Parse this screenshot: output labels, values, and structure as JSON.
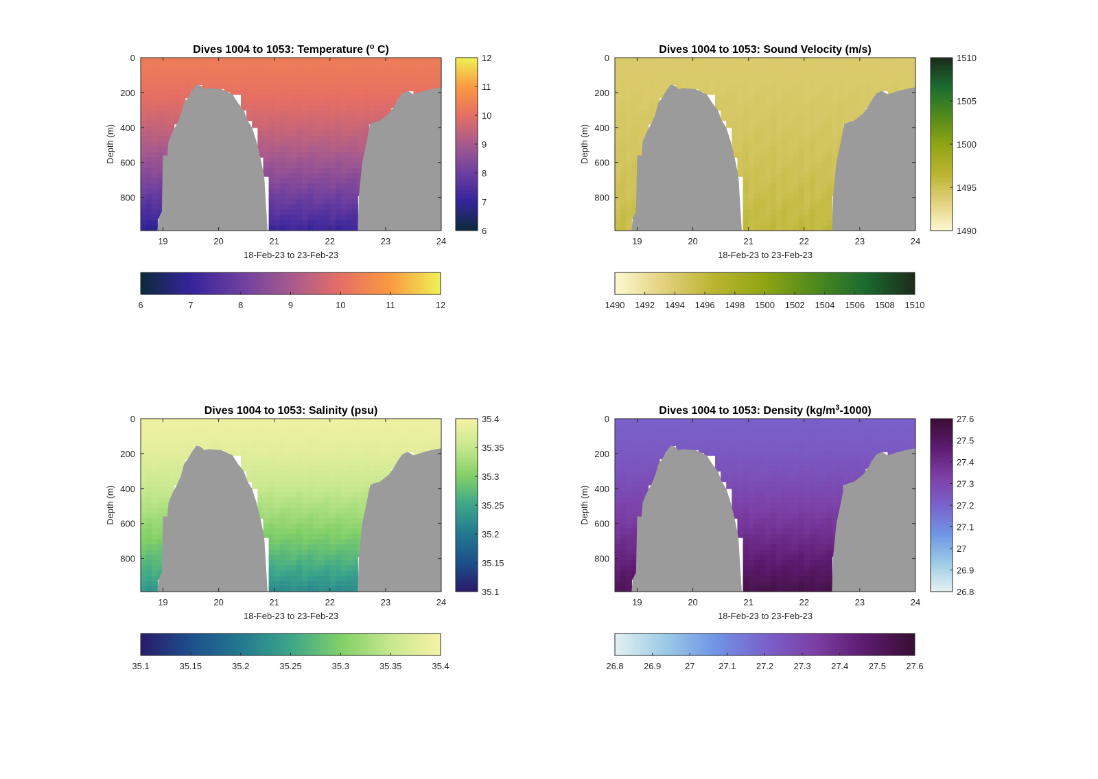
{
  "chart_data": [
    {
      "type": "heatmap",
      "title": "Dives 1004 to 1053: Temperature (",
      "title_sup": "o",
      "title_end": " C)",
      "xlabel": "18-Feb-23 to 23-Feb-23",
      "ylabel": "Depth (m)",
      "x_ticks": [
        "19",
        "20",
        "21",
        "22",
        "23",
        "24"
      ],
      "xlim": [
        18.6,
        24.0
      ],
      "y_ticks": [
        "0",
        "200",
        "400",
        "600",
        "800"
      ],
      "ylim": [
        0,
        990
      ],
      "colormap": [
        "#0c2a3a",
        "#35249b",
        "#6d3fa0",
        "#a65a8e",
        "#e66f63",
        "#fa9a42",
        "#eef256"
      ],
      "clim": [
        6,
        12
      ],
      "vcbar_ticks": [
        "6",
        "7",
        "8",
        "9",
        "10",
        "11",
        "12"
      ],
      "hcbar_ticks": [
        "6",
        "7",
        "8",
        "9",
        "10",
        "11",
        "12"
      ],
      "surface_value": 10.3,
      "deep_values": {
        "west": 6.8,
        "mid": 7.1
      },
      "bottom_color": "#9b9b9b"
    },
    {
      "type": "heatmap",
      "title": "Dives 1004 to 1053: Sound Velocity (m/s)",
      "title_sup": "",
      "title_end": "",
      "xlabel": "18-Feb-23 to 23-Feb-23",
      "ylabel": "Depth (m)",
      "x_ticks": [
        "19",
        "20",
        "21",
        "22",
        "23",
        "24"
      ],
      "xlim": [
        18.6,
        24.0
      ],
      "y_ticks": [
        "0",
        "200",
        "400",
        "600",
        "800"
      ],
      "ylim": [
        0,
        990
      ],
      "colormap": [
        "#fdf8d2",
        "#e2d07b",
        "#b9b430",
        "#8fa412",
        "#4f8a1c",
        "#1b6b2f",
        "#1b2b1b"
      ],
      "clim": [
        1490,
        1510
      ],
      "vcbar_ticks": [
        "1490",
        "1495",
        "1500",
        "1505",
        "1510"
      ],
      "hcbar_ticks": [
        "1490",
        "1492",
        "1494",
        "1496",
        "1498",
        "1500",
        "1502",
        "1504",
        "1506",
        "1508",
        "1510"
      ],
      "surface_value": 1494.0,
      "deep_values": {
        "west": 1495.5,
        "mid": 1496.0
      },
      "bottom_color": "#9b9b9b"
    },
    {
      "type": "heatmap",
      "title": "Dives 1004 to 1053: Salinity (psu)",
      "title_sup": "",
      "title_end": "",
      "xlabel": "18-Feb-23 to 23-Feb-23",
      "ylabel": "Depth (m)",
      "x_ticks": [
        "19",
        "20",
        "21",
        "22",
        "23",
        "24"
      ],
      "xlim": [
        18.6,
        24.0
      ],
      "y_ticks": [
        "0",
        "200",
        "400",
        "600",
        "800"
      ],
      "ylim": [
        0,
        990
      ],
      "colormap": [
        "#2a1a6b",
        "#1d4f8c",
        "#23788f",
        "#3ca68a",
        "#80cf67",
        "#c6e88e",
        "#f7f2a6"
      ],
      "clim": [
        35.1,
        35.4
      ],
      "vcbar_ticks": [
        "35.1",
        "35.15",
        "35.2",
        "35.25",
        "35.3",
        "35.35",
        "35.4"
      ],
      "hcbar_ticks": [
        "35.1",
        "35.15",
        "35.2",
        "35.25",
        "35.3",
        "35.35",
        "35.4"
      ],
      "surface_value": 35.39,
      "deep_values": {
        "west": 35.23,
        "mid": 35.22
      },
      "bottom_color": "#9b9b9b"
    },
    {
      "type": "heatmap",
      "title": "Dives 1004 to 1053: Density (kg/m",
      "title_sup": "3",
      "title_end": "-1000)",
      "xlabel": "18-Feb-23 to 23-Feb-23",
      "ylabel": "Depth (m)",
      "x_ticks": [
        "19",
        "20",
        "21",
        "22",
        "23",
        "24"
      ],
      "xlim": [
        18.6,
        24.0
      ],
      "y_ticks": [
        "0",
        "200",
        "400",
        "600",
        "800"
      ],
      "ylim": [
        0,
        990
      ],
      "colormap": [
        "#e4f1f1",
        "#9ccbe6",
        "#6f95e6",
        "#7a62cc",
        "#7c3fa5",
        "#5c1b6f",
        "#3a0d34"
      ],
      "clim": [
        26.8,
        27.6
      ],
      "vcbar_ticks": [
        "26.8",
        "26.9",
        "27",
        "27.1",
        "27.2",
        "27.3",
        "27.4",
        "27.5",
        "27.6"
      ],
      "hcbar_ticks": [
        "26.8",
        "26.9",
        "27",
        "27.1",
        "27.2",
        "27.3",
        "27.4",
        "27.5",
        "27.6"
      ],
      "surface_value": 27.21,
      "deep_values": {
        "west": 27.52,
        "mid": 27.55
      },
      "bottom_color": "#9b9b9b"
    }
  ]
}
